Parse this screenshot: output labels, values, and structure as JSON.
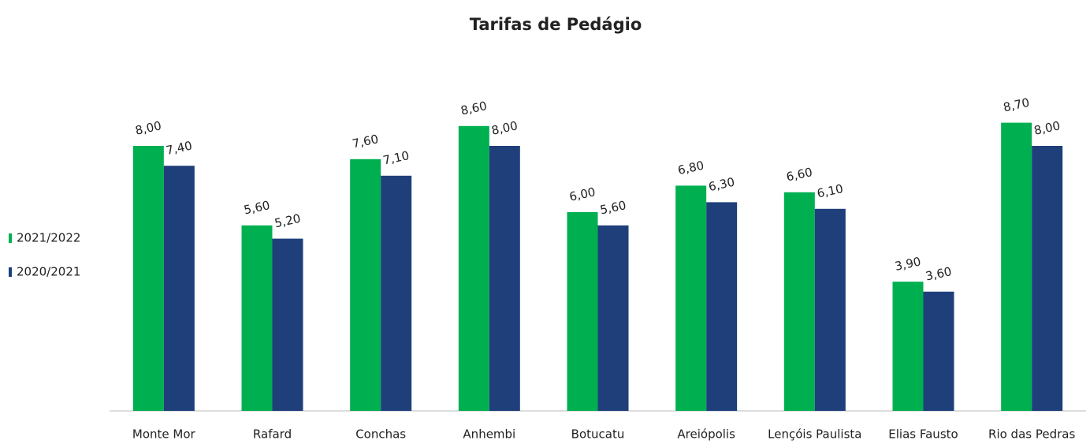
{
  "chart_data": {
    "type": "bar",
    "title": "Tarifas de Pedágio",
    "categories": [
      "Monte Mor",
      "Rafard",
      "Conchas",
      "Anhembi",
      "Botucatu",
      "Areiópolis",
      "Lençóis Paulista",
      "Elias Fausto",
      "Rio das Pedras"
    ],
    "series": [
      {
        "name": "2021/2022",
        "color": "#00b050",
        "values": [
          8.0,
          5.6,
          7.6,
          8.6,
          6.0,
          6.8,
          6.6,
          3.9,
          8.7
        ],
        "value_labels": [
          "8,00",
          "5,60",
          "7,60",
          "8,60",
          "6,00",
          "6,80",
          "6,60",
          "3,90",
          "8,70"
        ]
      },
      {
        "name": "2020/2021",
        "color": "#1f3f7b",
        "values": [
          7.4,
          5.2,
          7.1,
          8.0,
          5.6,
          6.3,
          6.1,
          3.6,
          8.0
        ],
        "value_labels": [
          "7,40",
          "5,20",
          "7,10",
          "8,00",
          "5,60",
          "6,30",
          "6,10",
          "3,60",
          "8,00"
        ]
      }
    ],
    "ylim": [
      0,
      10
    ],
    "legend": "left"
  }
}
